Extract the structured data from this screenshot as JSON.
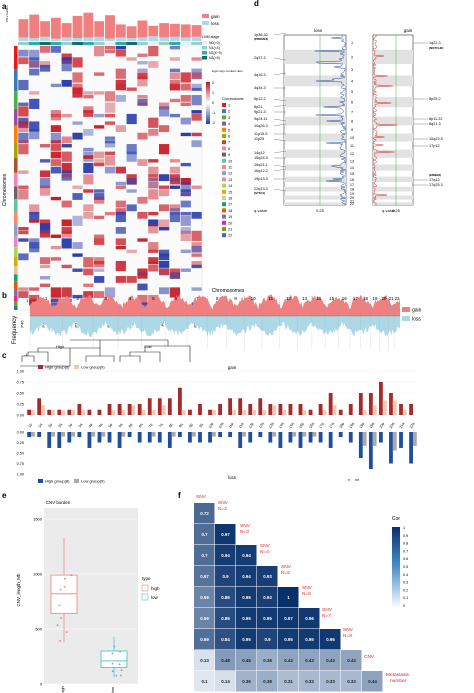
{
  "panels": {
    "a": {
      "label": "a",
      "legend_gainloss": [
        "gain",
        "loss"
      ],
      "legend_stage_title": "LNM stage",
      "legend_stage": [
        "N0(=0)",
        "N1(<4)",
        "N2(4~9)",
        "N3(>9)"
      ],
      "legend_scale_title": "log2 copy number ratio",
      "legend_scale_ticks": [
        "2",
        "1",
        "0",
        "-1",
        "-2"
      ],
      "legend_chrom_title": "Chromosome",
      "chromosomes": [
        "1",
        "2",
        "3",
        "4",
        "5",
        "6",
        "7",
        "8",
        "9",
        "10",
        "11",
        "12",
        "13",
        "14",
        "15",
        "16",
        "17",
        "18",
        "19",
        "20",
        "21",
        "22"
      ],
      "y_axis_label": "Chromosomes",
      "top_axis_label": "CNV burden",
      "groups": [
        "High",
        "Low"
      ],
      "samples": [
        "P46",
        "P14",
        "P42",
        "P23",
        "P27",
        "P21",
        "P3",
        "P11",
        "P17",
        "P2",
        "P13",
        "P10",
        "P35",
        "P6",
        "P36",
        "P42",
        "P25"
      ]
    },
    "d": {
      "label": "d",
      "loss_title": "loss",
      "gain_title": "gain",
      "loss_regions": [
        "1p36.32",
        "(PRDM16)",
        "2q37.3",
        "4q16.3",
        "4q34.3",
        "5p12.2",
        "8p21",
        "9p21.3",
        "9q24.11",
        "10q26.3",
        "11p15.5",
        "11p25",
        "14q12",
        "15q24.3",
        "16q21.1",
        "16q12.2",
        "19p13.3",
        "22q13.3",
        "(STK11)"
      ],
      "gain_regions": [
        "1q21.3",
        "(NOTCH2)",
        "8p25.2",
        "8p11.22",
        "8q21.3",
        "10q22.5",
        "17p12",
        "(ERBB2)",
        "17q12",
        "17q25.3"
      ],
      "q_value_label": "q-value",
      "q_tick": "0.25",
      "chrom_numbers": [
        "1",
        "2",
        "3",
        "4",
        "5",
        "6",
        "7",
        "8",
        "9",
        "10",
        "11",
        "12",
        "13",
        "14",
        "15",
        "16",
        "17",
        "18",
        "19",
        "20",
        "21",
        "22"
      ]
    },
    "b": {
      "label": "b",
      "title": "Chromosomes",
      "ylabel": "Frequency",
      "legend": [
        "gain",
        "loss"
      ],
      "y_ticks": [
        "1",
        "-1"
      ],
      "chrom_labels": [
        "1",
        "2",
        "3",
        "4",
        "5",
        "6",
        "7",
        "8",
        "9",
        "10",
        "11",
        "12",
        "13",
        "14",
        "15",
        "16",
        "17",
        "18",
        "19",
        "20",
        "21",
        "22"
      ]
    },
    "c": {
      "label": "c",
      "gain_title": "gain",
      "loss_title": "loss",
      "legend_gain": [
        "High group(8)",
        "Low group(9)"
      ],
      "legend_loss": [
        "High group(8)",
        "Low group(9)"
      ],
      "y_ticks_gain": [
        "1.00",
        "0.75",
        "0.50",
        "0.25",
        "0.00"
      ],
      "y_ticks_loss": [
        "0.00",
        "0.25",
        "0.50",
        "0.75",
        "1.00"
      ],
      "arm_labels": [
        "1p",
        "1q",
        "2p",
        "2q",
        "3p",
        "3q",
        "4p",
        "4q",
        "5p",
        "5q",
        "6p",
        "6q",
        "7p",
        "7q",
        "8p",
        "8q",
        "9p",
        "9q",
        "10p",
        "10q",
        "11p",
        "11q",
        "12p",
        "12q",
        "13q",
        "14q",
        "15q",
        "16p",
        "16q",
        "17p",
        "17q",
        "18p",
        "18q",
        "19p",
        "19q",
        "20p",
        "20q",
        "21q",
        "22q"
      ],
      "sig_marks": [
        "*",
        "**"
      ]
    },
    "e": {
      "label": "e",
      "title": "CNV burden",
      "pvalue": "0.0004",
      "ylabel": "CNV_length_Mb",
      "y_ticks": [
        "1500",
        "1000",
        "500",
        "0"
      ],
      "x_labels": [
        "high",
        "low"
      ],
      "legend_title": "type",
      "legend_items": [
        "high",
        "low"
      ]
    },
    "f": {
      "label": "f",
      "legend_title": "Cor",
      "legend_ticks": [
        "1",
        "0.9",
        "0.8",
        "0.7",
        "0.6",
        "0.5",
        "0.4",
        "0.3",
        "0.2",
        "0.1",
        "0"
      ],
      "row_labels": [
        "SNV",
        "SNV N=2",
        "SNV N=3",
        "SNV N=4",
        "SNV N=5",
        "SNV N=6",
        "SNV N=7",
        "SNV N=8",
        "CNV",
        "Metastasis number"
      ],
      "matrix_rows": [
        [
          "0.72"
        ],
        [
          "0.7",
          "0.97"
        ],
        [
          "0.7",
          "0.94",
          "0.94"
        ],
        [
          "0.67",
          "0.9",
          "0.94",
          "0.93"
        ],
        [
          "0.59",
          "0.86",
          "0.95",
          "0.93",
          "1"
        ],
        [
          "0.59",
          "0.86",
          "0.95",
          "0.95",
          "0.97",
          "0.96"
        ],
        [
          "0.69",
          "0.84",
          "0.95",
          "0.9",
          "0.95",
          "0.95",
          "0.96"
        ],
        [
          "0.13",
          "0.48",
          "0.45",
          "0.38",
          "0.43",
          "0.43",
          "0.43",
          "0.43"
        ],
        [
          "0.1",
          "0.14",
          "0.36",
          "0.38",
          "0.31",
          "0.33",
          "0.33",
          "0.33",
          "0.44"
        ]
      ]
    }
  },
  "colors": {
    "gain": "#f08080",
    "loss": "#add8e6",
    "high": "#a52a2a",
    "low": "#f2c6b4",
    "loss_high": "#1f4e9b",
    "loss_low": "#a9a9a9",
    "box_high": "#f08080",
    "box_low": "#40c0c8",
    "dark_blue": "#08306b",
    "sig_red": "#d62728"
  },
  "chart_data": [
    {
      "type": "bar",
      "title": "gain",
      "categories": [
        "1p",
        "1q",
        "2p",
        "2q",
        "3p",
        "3q",
        "4p",
        "4q",
        "5p",
        "5q",
        "6p",
        "6q",
        "7p",
        "7q",
        "8p",
        "8q",
        "9p",
        "9q",
        "10p",
        "10q",
        "11p",
        "11q",
        "12p",
        "12q",
        "13q",
        "14q",
        "15q",
        "16p",
        "16q",
        "17p",
        "17q",
        "18p",
        "18q",
        "19p",
        "19q",
        "20p",
        "20q",
        "21q",
        "22q"
      ],
      "series": [
        {
          "name": "High group(8)",
          "values": [
            0.12,
            0.38,
            0.12,
            0.12,
            0.12,
            0.25,
            0.12,
            0.12,
            0.25,
            0.25,
            0.25,
            0.25,
            0.38,
            0.38,
            0.38,
            0.62,
            0.12,
            0.25,
            0.12,
            0.25,
            0.38,
            0.38,
            0.25,
            0.38,
            0.25,
            0.25,
            0.25,
            0.25,
            0.12,
            0.25,
            0.5,
            0.12,
            0.25,
            0.5,
            0.5,
            0.75,
            0.5,
            0.25,
            0.25
          ]
        },
        {
          "name": "Low group(9)",
          "values": [
            0.11,
            0.22,
            0.11,
            0.11,
            0.11,
            0.11,
            0.0,
            0.0,
            0.11,
            0.11,
            0.22,
            0.11,
            0.11,
            0.22,
            0.0,
            0.11,
            0.0,
            0.0,
            0.11,
            0.0,
            0.11,
            0.11,
            0.11,
            0.11,
            0.22,
            0.11,
            0.0,
            0.11,
            0.0,
            0.11,
            0.22,
            0.0,
            0.0,
            0.11,
            0.22,
            0.33,
            0.33,
            0.11,
            0.0
          ]
        }
      ],
      "ylim": [
        0,
        1
      ]
    },
    {
      "type": "bar",
      "title": "loss",
      "categories": [
        "1p",
        "1q",
        "2p",
        "2q",
        "3p",
        "3q",
        "4p",
        "4q",
        "5p",
        "5q",
        "6p",
        "6q",
        "7p",
        "7q",
        "8p",
        "8q",
        "9p",
        "9q",
        "10p",
        "10q",
        "11p",
        "11q",
        "12p",
        "12q",
        "13q",
        "14q",
        "15q",
        "16p",
        "16q",
        "17p",
        "17q",
        "18p",
        "18q",
        "19p",
        "19q",
        "20p",
        "20q",
        "21q",
        "22q"
      ],
      "series": [
        {
          "name": "High group(8)",
          "values": [
            0.12,
            0.12,
            0.38,
            0.38,
            0.25,
            0.12,
            0.38,
            0.25,
            0.25,
            0.38,
            0.12,
            0.25,
            0.25,
            0.25,
            0.38,
            0.12,
            0.25,
            0.25,
            0.25,
            0.12,
            0.12,
            0.38,
            0.25,
            0.12,
            0.25,
            0.38,
            0.25,
            0.38,
            0.25,
            0.25,
            0.38,
            0.12,
            0.25,
            0.62,
            0.88,
            0.25,
            0.75,
            0.38,
            0.75
          ]
        },
        {
          "name": "Low group(9)",
          "values": [
            0.11,
            0.0,
            0.11,
            0.11,
            0.11,
            0.0,
            0.11,
            0.11,
            0.0,
            0.11,
            0.0,
            0.0,
            0.11,
            0.0,
            0.11,
            0.0,
            0.11,
            0.0,
            0.11,
            0.0,
            0.0,
            0.11,
            0.0,
            0.0,
            0.11,
            0.0,
            0.11,
            0.11,
            0.11,
            0.0,
            0.0,
            0.0,
            0.0,
            0.33,
            0.33,
            0.0,
            0.44,
            0.0,
            0.33
          ]
        }
      ],
      "ylim": [
        0,
        1
      ]
    },
    {
      "type": "box",
      "title": "CNV burden",
      "categories": [
        "high",
        "low"
      ],
      "series": [
        {
          "name": "high",
          "min": 380,
          "q1": 640,
          "median": 820,
          "q3": 990,
          "max": 1330
        },
        {
          "name": "low",
          "min": 60,
          "q1": 150,
          "median": 210,
          "q3": 300,
          "max": 430
        }
      ],
      "ylabel": "CNV_length_Mb",
      "ylim": [
        0,
        1600
      ]
    },
    {
      "type": "heatmap",
      "labels": [
        "SNV",
        "SNV N=2",
        "SNV N=3",
        "SNV N=4",
        "SNV N=5",
        "SNV N=6",
        "SNV N=7",
        "SNV N=8",
        "CNV",
        "Metastasis number"
      ],
      "values": [
        [
          0.72
        ],
        [
          0.7,
          0.97
        ],
        [
          0.7,
          0.94,
          0.94
        ],
        [
          0.67,
          0.9,
          0.94,
          0.93
        ],
        [
          0.59,
          0.86,
          0.95,
          0.93,
          1
        ],
        [
          0.59,
          0.86,
          0.95,
          0.95,
          0.97,
          0.96
        ],
        [
          0.69,
          0.84,
          0.95,
          0.9,
          0.95,
          0.95,
          0.96
        ],
        [
          0.13,
          0.48,
          0.45,
          0.38,
          0.43,
          0.43,
          0.43,
          0.43
        ],
        [
          0.1,
          0.14,
          0.36,
          0.38,
          0.31,
          0.33,
          0.33,
          0.33,
          0.44
        ]
      ]
    }
  ]
}
